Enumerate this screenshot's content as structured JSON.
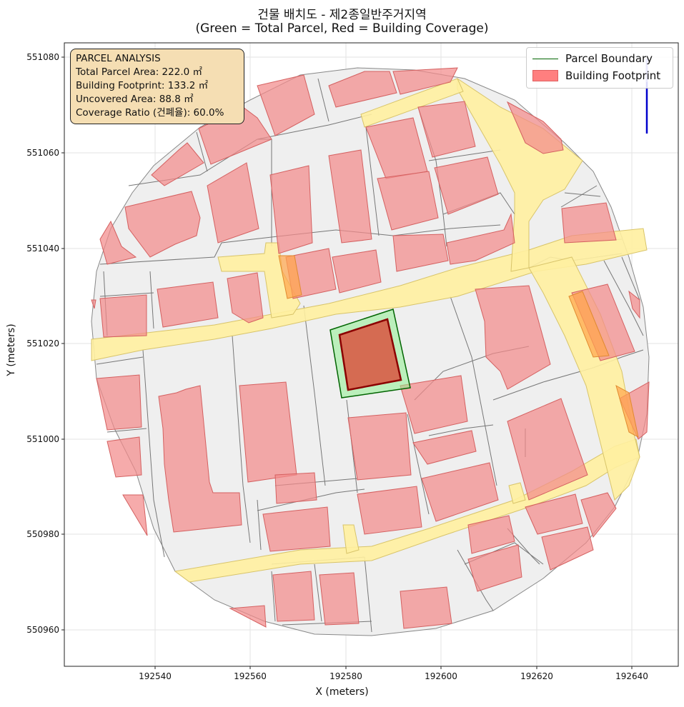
{
  "title_line1": "건물 배치도 - 제2종일반주거지역",
  "title_line2": "(Green = Total Parcel, Red = Building Coverage)",
  "xlabel": "X (meters)",
  "ylabel": "Y (meters)",
  "x_ticks": [
    "192540",
    "192560",
    "192580",
    "192600",
    "192620",
    "192640"
  ],
  "y_ticks": [
    "551080",
    "551060",
    "551040",
    "551020",
    "551000",
    "550980",
    "550960"
  ],
  "info_box": {
    "heading": "PARCEL ANALYSIS",
    "line1": "Total Parcel Area: 222.0 ㎡",
    "line2": "Building Footprint: 133.2 ㎡",
    "line3": "Uncovered Area: 88.8 ㎡",
    "line4": "Coverage Ratio (건폐율): 60.0%"
  },
  "legend": {
    "parcel": "Parcel Boundary",
    "building": "Building Footprint"
  },
  "colors": {
    "parcel_stroke": "#006400",
    "parcel_fill": "#90ee90",
    "target_building": "#d9533f",
    "building_fill": "#f28b8b",
    "road_fill": "#fff0a0",
    "block_fill": "#eeeeee",
    "north_arrow": "#0000cd"
  },
  "icons": {
    "north_arrow": "north-arrow-icon"
  }
}
